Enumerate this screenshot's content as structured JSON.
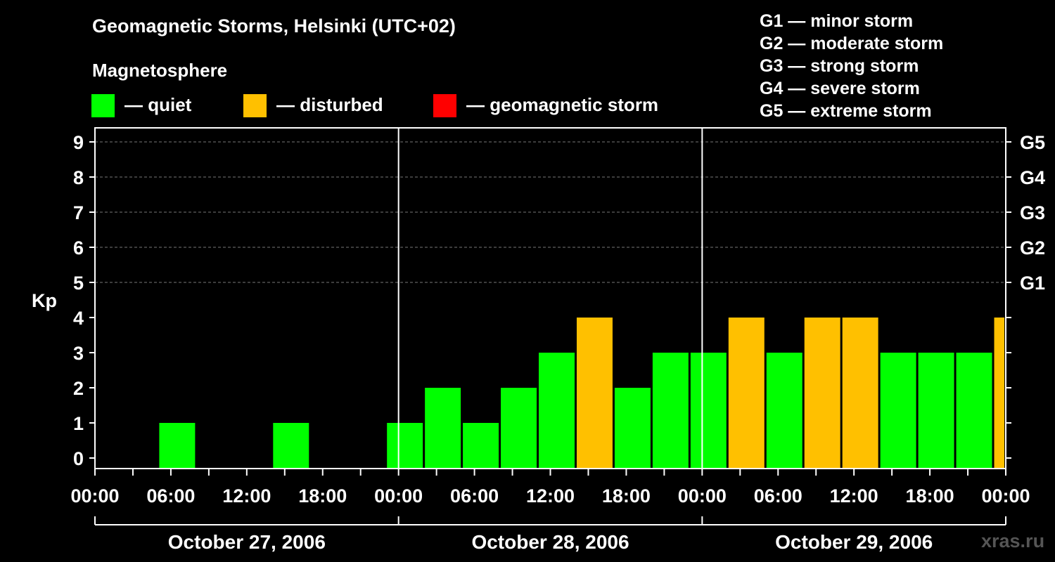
{
  "title": "Geomagnetic Storms, Helsinki (UTC+02)",
  "legend": {
    "heading": "Magnetosphere",
    "items": [
      {
        "label": "— quiet",
        "color": "#00ff00"
      },
      {
        "label": "— disturbed",
        "color": "#ffc000"
      },
      {
        "label": "— geomagnetic storm",
        "color": "#ff0000"
      }
    ]
  },
  "g_legend": [
    "G1 — minor storm",
    "G2 — moderate storm",
    "G3 — strong storm",
    "G4 — severe storm",
    "G5 — extreme storm"
  ],
  "watermark": "xras.ru",
  "chart_data": {
    "type": "bar",
    "ylabel": "Kp",
    "ylim": [
      0,
      9
    ],
    "y_ticks": [
      "0",
      "1",
      "2",
      "3",
      "4",
      "5",
      "6",
      "7",
      "8",
      "9"
    ],
    "g_ticks": [
      {
        "kp": 5,
        "label": "G1"
      },
      {
        "kp": 6,
        "label": "G2"
      },
      {
        "kp": 7,
        "label": "G3"
      },
      {
        "kp": 8,
        "label": "G4"
      },
      {
        "kp": 9,
        "label": "G5"
      }
    ],
    "x_tick_labels": [
      "00:00",
      "06:00",
      "12:00",
      "18:00",
      "00:00",
      "06:00",
      "12:00",
      "18:00",
      "00:00",
      "06:00",
      "12:00",
      "18:00",
      "00:00"
    ],
    "days": [
      "October 27, 2006",
      "October 28, 2006",
      "October 29, 2006"
    ],
    "grid": "dashed horizontal at Kp 5-9",
    "thresholds": {
      "disturbed": 4,
      "storm": 5
    },
    "colors": {
      "quiet": "#00ff00",
      "disturbed": "#ffc000",
      "storm": "#ff0000"
    },
    "bars": [
      {
        "start": "Oct 27 02:00",
        "kp": 0
      },
      {
        "start": "Oct 27 05:00",
        "kp": 1
      },
      {
        "start": "Oct 27 08:00",
        "kp": 0
      },
      {
        "start": "Oct 27 11:00",
        "kp": 0
      },
      {
        "start": "Oct 27 14:00",
        "kp": 1
      },
      {
        "start": "Oct 27 17:00",
        "kp": 0
      },
      {
        "start": "Oct 27 20:00",
        "kp": 0
      },
      {
        "start": "Oct 27 23:00",
        "kp": 1
      },
      {
        "start": "Oct 28 02:00",
        "kp": 2
      },
      {
        "start": "Oct 28 05:00",
        "kp": 1
      },
      {
        "start": "Oct 28 08:00",
        "kp": 2
      },
      {
        "start": "Oct 28 11:00",
        "kp": 3
      },
      {
        "start": "Oct 28 14:00",
        "kp": 4
      },
      {
        "start": "Oct 28 17:00",
        "kp": 2
      },
      {
        "start": "Oct 28 20:00",
        "kp": 3
      },
      {
        "start": "Oct 28 23:00",
        "kp": 3
      },
      {
        "start": "Oct 29 02:00",
        "kp": 4
      },
      {
        "start": "Oct 29 05:00",
        "kp": 3
      },
      {
        "start": "Oct 29 08:00",
        "kp": 4
      },
      {
        "start": "Oct 29 11:00",
        "kp": 4
      },
      {
        "start": "Oct 29 14:00",
        "kp": 3
      },
      {
        "start": "Oct 29 17:00",
        "kp": 3
      },
      {
        "start": "Oct 29 20:00",
        "kp": 3
      },
      {
        "start": "Oct 29 23:00",
        "kp": 4
      }
    ]
  }
}
